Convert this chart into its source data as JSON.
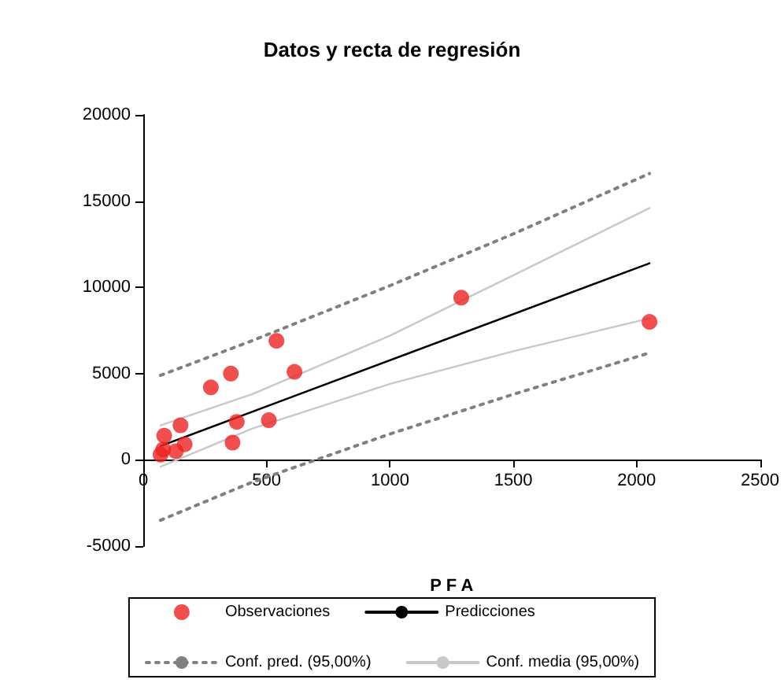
{
  "chart_data": {
    "type": "scatter",
    "title": "Datos y recta de regresión",
    "xlabel": "P F A",
    "xlim": [
      0,
      2500
    ],
    "xticks": [
      0,
      500,
      1000,
      1500,
      2000,
      2500
    ],
    "ylim": [
      -5000,
      20000
    ],
    "yticks": [
      -5000,
      0,
      5000,
      10000,
      15000,
      20000
    ],
    "grid": false,
    "legend": "bottom",
    "series": [
      {
        "name": "Observaciones",
        "marker": "circle",
        "color": "#ee2222",
        "x": [
          70,
          81,
          85,
          132,
          151,
          168,
          274,
          355,
          362,
          379,
          509,
          540,
          613,
          1289,
          2052
        ],
        "values": [
          300,
          600,
          1400,
          500,
          2000,
          900,
          4200,
          5000,
          1000,
          2200,
          2300,
          6900,
          5100,
          9400,
          8000
        ]
      },
      {
        "name": "Predicciones",
        "type": "line",
        "marker": "none",
        "line_style": "solid",
        "color": "#000000",
        "x": [
          70,
          2052
        ],
        "values": [
          800,
          11400
        ]
      },
      {
        "name": "Conf. pred. (95,00%)",
        "type": "line",
        "marker": "none",
        "line_style": "dotted",
        "color": "#808080",
        "x": [
          70,
          440,
          1000,
          1500,
          2052
        ],
        "values": [
          -3500,
          -1300,
          1500,
          3800,
          6200
        ]
      },
      {
        "type": "line",
        "marker": "none",
        "line_style": "dotted",
        "color": "#808080",
        "x": [
          70,
          440,
          1000,
          1500,
          2052
        ],
        "values": [
          4900,
          6900,
          10100,
          13100,
          16600
        ]
      },
      {
        "name": "Conf. media (95,00%)",
        "type": "line",
        "marker": "none",
        "line_style": "solid",
        "color": "#c8c8c8",
        "x": [
          70,
          440,
          1000,
          1500,
          2052
        ],
        "values": [
          -400,
          1800,
          4400,
          6300,
          8200
        ]
      },
      {
        "type": "line",
        "marker": "none",
        "line_style": "solid",
        "color": "#c8c8c8",
        "x": [
          70,
          440,
          1000,
          1500,
          2052
        ],
        "values": [
          2000,
          3800,
          7200,
          10700,
          14600
        ]
      }
    ]
  }
}
